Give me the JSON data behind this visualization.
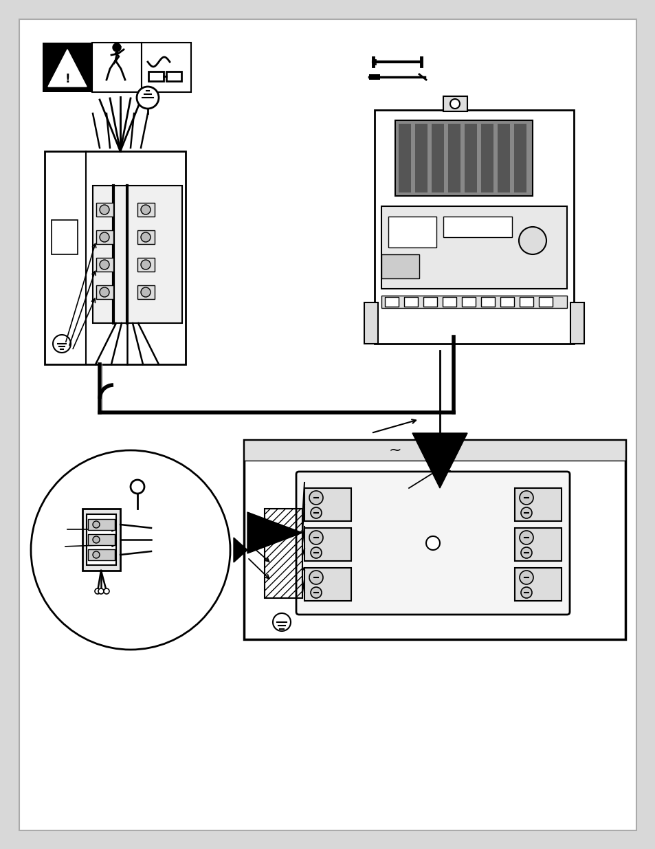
{
  "page_bg": "#ffffff",
  "outer_bg": "#d8d8d8",
  "line_color": "#000000",
  "gray_light": "#e8e8e8",
  "gray_med": "#c8c8c8",
  "gray_dark": "#888888"
}
